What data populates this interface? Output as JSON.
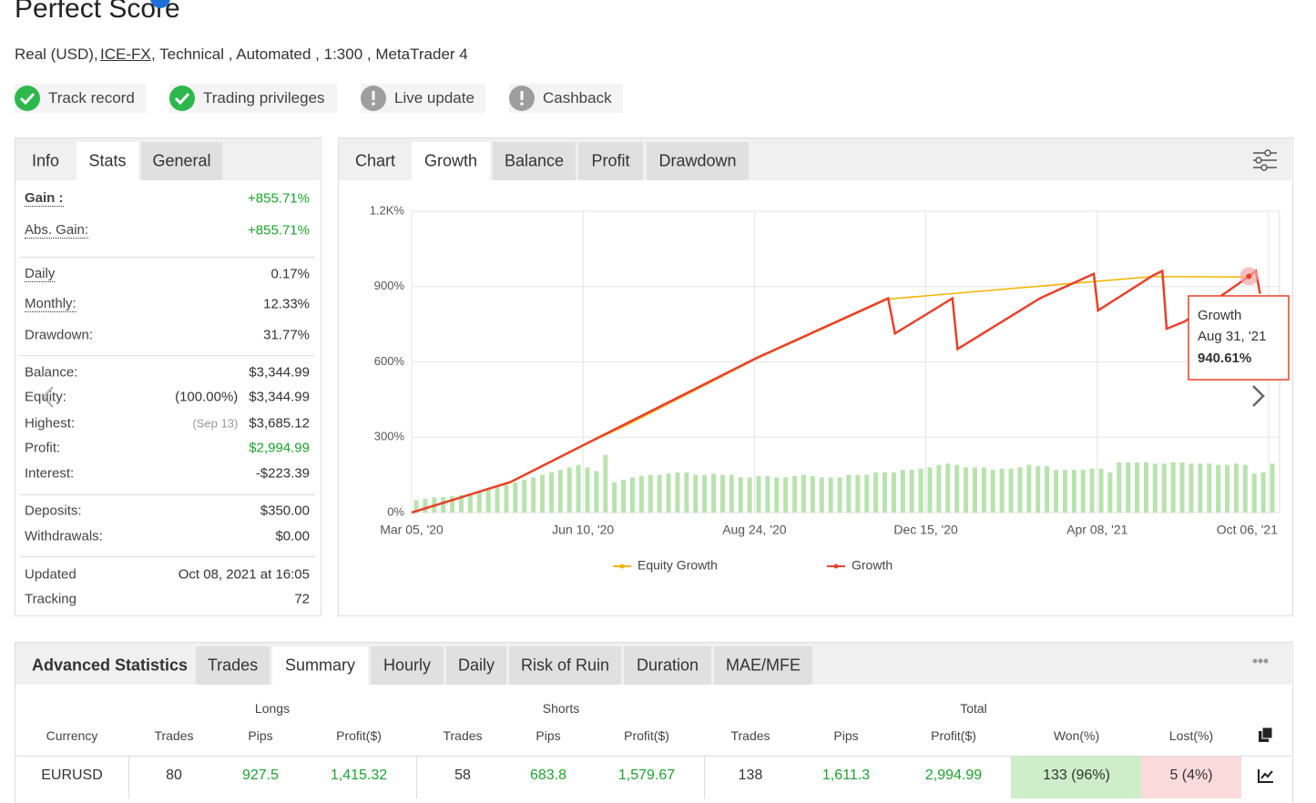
{
  "header": {
    "title": "Perfect Score",
    "meta_prefix": "Real (USD),",
    "broker": "ICE-FX",
    "meta_suffix": ", Technical , Automated , 1:300 , MetaTrader 4",
    "badges": [
      {
        "label": "Track record",
        "status": "ok"
      },
      {
        "label": "Trading privileges",
        "status": "ok"
      },
      {
        "label": "Live update",
        "status": "warn"
      },
      {
        "label": "Cashback",
        "status": "warn"
      }
    ]
  },
  "info": {
    "tabs": [
      "Info",
      "Stats",
      "General"
    ],
    "groups": [
      [
        {
          "label": "Gain :",
          "value": "+855.71%",
          "color": "#1aa52b"
        },
        {
          "label": "Abs. Gain:",
          "value": "+855.71%",
          "color": "#1aa52b"
        }
      ],
      [
        {
          "label": "Daily",
          "value": "0.17%"
        },
        {
          "label": "Monthly:",
          "value": "12.33%"
        },
        {
          "label": "Drawdown:",
          "value": "31.77%"
        }
      ],
      [
        {
          "label": "Balance:",
          "value": "$3,344.99"
        },
        {
          "label": "Equity:",
          "note": "(100.00%)",
          "value": "$3,344.99"
        },
        {
          "label": "Highest:",
          "note": "(Sep 13)",
          "value": "$3,685.12"
        },
        {
          "label": "Profit:",
          "value": "$2,994.99",
          "color": "#1aa52b"
        },
        {
          "label": "Interest:",
          "value": "-$223.39"
        }
      ],
      [
        {
          "label": "Deposits:",
          "value": "$350.00"
        },
        {
          "label": "Withdrawals:",
          "value": "$0.00"
        }
      ],
      [
        {
          "label": "Updated",
          "value": "Oct 08, 2021 at 16:05"
        },
        {
          "label": "Tracking",
          "value": "72"
        }
      ]
    ]
  },
  "chart_tabs": [
    "Chart",
    "Growth",
    "Balance",
    "Profit",
    "Drawdown"
  ],
  "chart_data": {
    "type": "line",
    "xlim": [
      0,
      100
    ],
    "ylim": [
      0,
      1200
    ],
    "grid": true,
    "xticks": [
      {
        "value": 0,
        "label": "Mar 05, '20"
      },
      {
        "value": 20,
        "label": "Jun 10, '20"
      },
      {
        "value": 40,
        "label": "Aug 24, '20"
      },
      {
        "value": 60,
        "label": "Dec 15, '20"
      },
      {
        "value": 80,
        "label": "Apr 08, '21"
      },
      {
        "value": 100,
        "label": "Oct 06, '21"
      }
    ],
    "yticks": [
      {
        "value": 0,
        "label": "0%"
      },
      {
        "value": 300,
        "label": "300%"
      },
      {
        "value": 600,
        "label": "600%"
      },
      {
        "value": 900,
        "label": "900%"
      },
      {
        "value": 1200,
        "label": "1.2K%"
      }
    ],
    "series": [
      {
        "name": "Equity Growth",
        "color": "#f5b400",
        "x": [
          0,
          11.5,
          21,
          25.3,
          40.2,
          55.6,
          86.5,
          97.7
        ],
        "values": [
          0,
          119,
          283,
          352,
          612,
          850,
          940,
          938
        ]
      },
      {
        "name": "Growth",
        "color": "#e8412a",
        "x": [
          0,
          11.5,
          21,
          25.3,
          40.2,
          55.6,
          56.4,
          63.1,
          63.7,
          73.3,
          79.6,
          80.1,
          86.5,
          87.6,
          88.1,
          90.2,
          97.7,
          98.5,
          99
        ],
        "values": [
          0,
          121,
          285,
          359,
          615,
          853,
          713,
          853,
          651,
          853,
          951,
          805,
          944,
          962,
          732,
          761,
          940.61,
          962,
          871
        ]
      }
    ],
    "bars": {
      "color": "#b8e3ad",
      "values": [
        50,
        55,
        60,
        62,
        65,
        70,
        75,
        80,
        90,
        100,
        110,
        120,
        130,
        140,
        150,
        160,
        170,
        180,
        190,
        180,
        165,
        230,
        120,
        130,
        140,
        145,
        150,
        150,
        155,
        160,
        160,
        150,
        150,
        155,
        150,
        150,
        140,
        140,
        145,
        145,
        140,
        140,
        145,
        150,
        145,
        140,
        140,
        140,
        150,
        150,
        150,
        160,
        160,
        160,
        170,
        170,
        175,
        180,
        190,
        195,
        190,
        180,
        180,
        180,
        170,
        175,
        175,
        180,
        190,
        185,
        185,
        170,
        170,
        170,
        170,
        175,
        175,
        160,
        200,
        200,
        200,
        200,
        195,
        195,
        200,
        200,
        195,
        195,
        195,
        190,
        190,
        195,
        190,
        155,
        160,
        195
      ]
    },
    "tooltip": {
      "series": "Growth",
      "date": "Aug 31, '21",
      "x": 97.7,
      "value": 940.61,
      "value_label": "940.61%"
    }
  },
  "advanced": {
    "title": "Advanced Statistics",
    "tabs": [
      "Trades",
      "Summary",
      "Hourly",
      "Daily",
      "Risk of Ruin",
      "Duration",
      "MAE/MFE"
    ],
    "groups": [
      "Longs",
      "Shorts",
      "Total"
    ],
    "columns": [
      "Currency",
      "Trades",
      "Pips",
      "Profit($)",
      "Trades",
      "Pips",
      "Profit($)",
      "Trades",
      "Pips",
      "Profit($)",
      "Won(%)",
      "Lost(%)"
    ],
    "rows": [
      [
        "EURUSD",
        "80",
        "927.5",
        "1,415.32",
        "58",
        "683.8",
        "1,579.67",
        "138",
        "1,611.3",
        "2,994.99",
        "133 (96%)",
        "5 (4%)"
      ]
    ]
  }
}
